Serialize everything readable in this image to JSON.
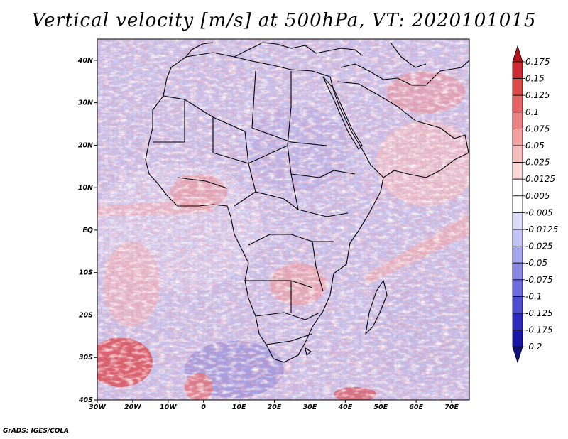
{
  "title": "Vertical velocity [m/s] at 500hPa, VT: 2020101015",
  "credit": "GrADS: IGES/COLA",
  "map": {
    "lon_range": [
      -30,
      75
    ],
    "lat_range": [
      -40,
      45
    ],
    "lon_ticks": [
      {
        "lon": -30,
        "label": "30W"
      },
      {
        "lon": -20,
        "label": "20W"
      },
      {
        "lon": -10,
        "label": "10W"
      },
      {
        "lon": 0,
        "label": "0"
      },
      {
        "lon": 10,
        "label": "10E"
      },
      {
        "lon": 20,
        "label": "20E"
      },
      {
        "lon": 30,
        "label": "30E"
      },
      {
        "lon": 40,
        "label": "40E"
      },
      {
        "lon": 50,
        "label": "50E"
      },
      {
        "lon": 60,
        "label": "60E"
      },
      {
        "lon": 70,
        "label": "70E"
      }
    ],
    "lat_ticks": [
      {
        "lat": 40,
        "label": "40N"
      },
      {
        "lat": 30,
        "label": "30N"
      },
      {
        "lat": 20,
        "label": "20N"
      },
      {
        "lat": 10,
        "label": "10N"
      },
      {
        "lat": 0,
        "label": "EQ"
      },
      {
        "lat": -10,
        "label": "10S"
      },
      {
        "lat": -20,
        "label": "20S"
      },
      {
        "lat": -30,
        "label": "30S"
      },
      {
        "lat": -40,
        "label": "40S"
      }
    ]
  },
  "colorbar": {
    "labels": [
      "0.175",
      "0.15",
      "0.125",
      "0.1",
      "0.075",
      "0.05",
      "0.025",
      "0.0125",
      "0.005",
      "-0.005",
      "-0.0125",
      "-0.025",
      "-0.05",
      "-0.075",
      "-0.1",
      "-0.125",
      "-0.175",
      "-0.2"
    ],
    "colors": [
      "#b8141e",
      "#cc2a30",
      "#dc4848",
      "#e86464",
      "#ee8282",
      "#f3a0a0",
      "#f7bcbc",
      "#fad8d8",
      "#ffffff",
      "#ffffff",
      "#dcdcf8",
      "#c2c2f4",
      "#a6a6ee",
      "#8a8ae6",
      "#6c6cdc",
      "#4c4cd0",
      "#2c2cc0",
      "#1818a8",
      "#10107a"
    ]
  }
}
